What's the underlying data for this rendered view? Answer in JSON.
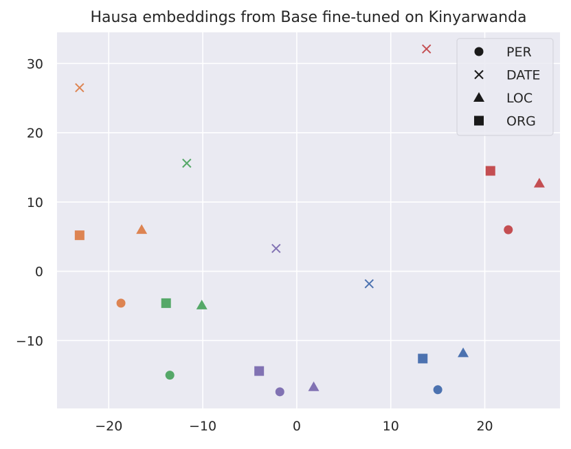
{
  "chart_data": {
    "type": "scatter",
    "title": "Hausa embeddings from Base fine-tuned on Kinyarwanda",
    "xlabel": "",
    "ylabel": "",
    "xlim": [
      -25.5,
      28.0
    ],
    "ylim": [
      -19.8,
      34.5
    ],
    "x_ticks": [
      -20,
      -10,
      0,
      10,
      20
    ],
    "y_ticks": [
      -10,
      0,
      10,
      20,
      30
    ],
    "x_tick_labels": [
      "−20",
      "−10",
      "0",
      "10",
      "20"
    ],
    "y_tick_labels": [
      "−10",
      "0",
      "10",
      "20",
      "30"
    ],
    "grid": true,
    "legend_position": "top-right",
    "colors": {
      "background": "#eaeaf2",
      "grid": "#ffffff",
      "legend_marker": "#1a1a1a"
    },
    "legend": [
      {
        "label": "PER",
        "marker": "circle"
      },
      {
        "label": "DATE",
        "marker": "x"
      },
      {
        "label": "LOC",
        "marker": "triangle"
      },
      {
        "label": "ORG",
        "marker": "square"
      }
    ],
    "points": [
      {
        "x": 13.8,
        "y": 32.1,
        "marker": "x",
        "color": "#c44e52"
      },
      {
        "x": 20.6,
        "y": 14.5,
        "marker": "square",
        "color": "#c44e52"
      },
      {
        "x": 25.8,
        "y": 12.7,
        "marker": "triangle",
        "color": "#c44e52"
      },
      {
        "x": 22.5,
        "y": 6.0,
        "marker": "circle",
        "color": "#c44e52"
      },
      {
        "x": -23.1,
        "y": 26.5,
        "marker": "x",
        "color": "#dd8452"
      },
      {
        "x": -23.1,
        "y": 5.2,
        "marker": "square",
        "color": "#dd8452"
      },
      {
        "x": -16.5,
        "y": 6.0,
        "marker": "triangle",
        "color": "#dd8452"
      },
      {
        "x": -18.7,
        "y": -4.6,
        "marker": "circle",
        "color": "#dd8452"
      },
      {
        "x": -11.7,
        "y": 15.6,
        "marker": "x",
        "color": "#55a868"
      },
      {
        "x": -13.9,
        "y": -4.6,
        "marker": "square",
        "color": "#55a868"
      },
      {
        "x": -10.1,
        "y": -4.9,
        "marker": "triangle",
        "color": "#55a868"
      },
      {
        "x": -13.5,
        "y": -15.0,
        "marker": "circle",
        "color": "#55a868"
      },
      {
        "x": -2.2,
        "y": 3.3,
        "marker": "x",
        "color": "#8172b3"
      },
      {
        "x": -4.0,
        "y": -14.4,
        "marker": "square",
        "color": "#8172b3"
      },
      {
        "x": 1.8,
        "y": -16.7,
        "marker": "triangle",
        "color": "#8172b3"
      },
      {
        "x": -1.8,
        "y": -17.4,
        "marker": "circle",
        "color": "#8172b3"
      },
      {
        "x": 7.7,
        "y": -1.8,
        "marker": "x",
        "color": "#4c72b0"
      },
      {
        "x": 13.4,
        "y": -12.6,
        "marker": "square",
        "color": "#4c72b0"
      },
      {
        "x": 17.7,
        "y": -11.8,
        "marker": "triangle",
        "color": "#4c72b0"
      },
      {
        "x": 15.0,
        "y": -17.1,
        "marker": "circle",
        "color": "#4c72b0"
      }
    ]
  }
}
